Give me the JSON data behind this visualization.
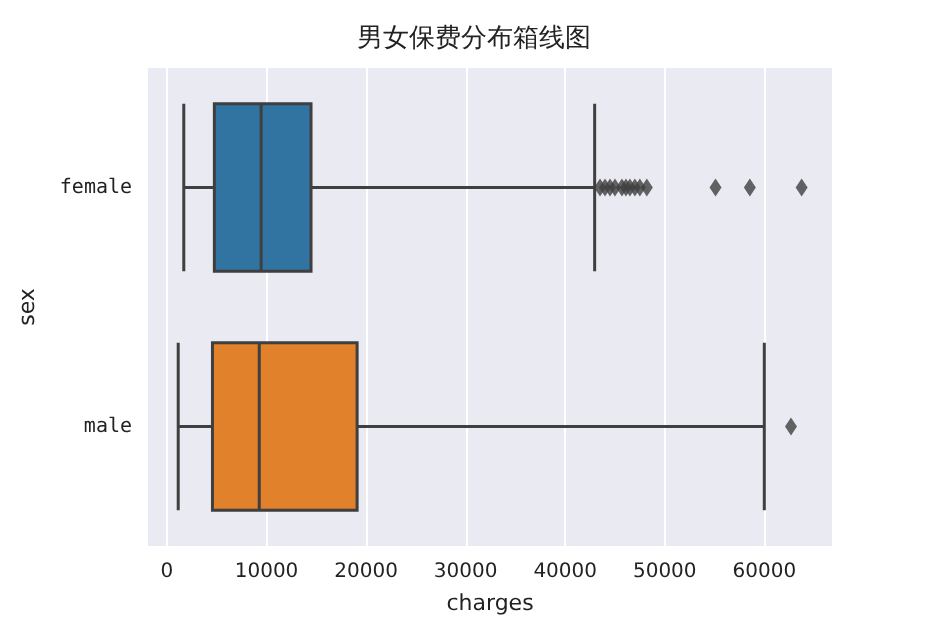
{
  "chart_data": {
    "type": "box",
    "title": "男女保费分布箱线图",
    "xlabel": "charges",
    "ylabel": "sex",
    "orientation": "horizontal",
    "categories": [
      "female",
      "male"
    ],
    "colors": [
      "#3274a1",
      "#e1812c"
    ],
    "boxes": [
      {
        "low": 1690,
        "q1": 4760,
        "median": 9460,
        "q3": 14470,
        "high": 42960,
        "outliers": [
          43500,
          44000,
          44500,
          45000,
          45700,
          46100,
          46500,
          47000,
          47500,
          48200,
          55100,
          58550,
          63750
        ]
      },
      {
        "low": 1130,
        "q1": 4570,
        "median": 9270,
        "q3": 19100,
        "high": 60000,
        "outliers": [
          62680
        ]
      }
    ],
    "xlim": [
      -1900,
      66800
    ],
    "xticks": [
      0,
      10000,
      20000,
      30000,
      40000,
      50000,
      60000
    ],
    "grid": "x",
    "marker": "diamond"
  }
}
